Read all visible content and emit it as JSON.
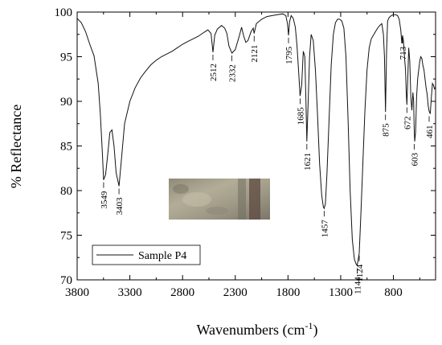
{
  "chart_data": {
    "type": "line",
    "xlabel": "Wavenumbers (cm",
    "xlabel_sup": "-1",
    "xlabel_close": ")",
    "ylabel": "% Reflectance",
    "xlim": [
      3800,
      400
    ],
    "ylim": [
      70,
      100
    ],
    "x_reversed": true,
    "x_ticks": [
      3800,
      3300,
      2800,
      2300,
      1800,
      1300,
      800
    ],
    "y_ticks": [
      70,
      75,
      80,
      85,
      90,
      95,
      100
    ],
    "legend": {
      "label": "Sample P4",
      "placement": "bottom-left"
    },
    "inset_photo": "sample photo",
    "series": [
      {
        "name": "Sample P4",
        "x": [
          3800,
          3760,
          3720,
          3680,
          3640,
          3600,
          3580,
          3560,
          3549,
          3530,
          3510,
          3490,
          3470,
          3450,
          3430,
          3403,
          3380,
          3350,
          3300,
          3250,
          3200,
          3150,
          3100,
          3050,
          3000,
          2950,
          2900,
          2850,
          2800,
          2750,
          2700,
          2650,
          2600,
          2560,
          2530,
          2512,
          2495,
          2470,
          2430,
          2400,
          2380,
          2360,
          2332,
          2300,
          2260,
          2240,
          2220,
          2200,
          2180,
          2150,
          2130,
          2121,
          2100,
          2050,
          2000,
          1950,
          1900,
          1850,
          1820,
          1805,
          1795,
          1785,
          1770,
          1750,
          1730,
          1715,
          1700,
          1685,
          1670,
          1655,
          1640,
          1630,
          1621,
          1610,
          1595,
          1580,
          1560,
          1540,
          1520,
          1500,
          1480,
          1465,
          1457,
          1445,
          1430,
          1410,
          1390,
          1370,
          1350,
          1330,
          1310,
          1290,
          1270,
          1250,
          1230,
          1210,
          1190,
          1170,
          1155,
          1144,
          1135,
          1124,
          1110,
          1090,
          1070,
          1050,
          1030,
          1010,
          990,
          970,
          950,
          930,
          910,
          895,
          885,
          875,
          865,
          855,
          840,
          820,
          800,
          780,
          760,
          745,
          730,
          720,
          713,
          705,
          695,
          685,
          678,
          672,
          665,
          655,
          645,
          635,
          625,
          615,
          608,
          603,
          598,
          590,
          580,
          570,
          560,
          550,
          540,
          530,
          520,
          510,
          500,
          490,
          480,
          470,
          461,
          450,
          440,
          430,
          420,
          410,
          400
        ],
        "y": [
          99.3,
          98.8,
          97.8,
          96.4,
          95.1,
          92.0,
          88.5,
          84.0,
          81.2,
          81.8,
          84.0,
          86.5,
          86.8,
          85.0,
          82.0,
          80.5,
          83.5,
          87.5,
          90.0,
          91.5,
          92.6,
          93.4,
          94.1,
          94.6,
          95.0,
          95.3,
          95.6,
          96.0,
          96.4,
          96.7,
          97.0,
          97.3,
          97.7,
          98.0,
          97.6,
          95.5,
          97.4,
          98.1,
          98.5,
          98.2,
          97.6,
          96.2,
          95.4,
          95.8,
          97.4,
          98.3,
          97.3,
          96.6,
          96.8,
          97.8,
          98.2,
          97.6,
          98.7,
          99.2,
          99.5,
          99.6,
          99.7,
          99.8,
          99.6,
          98.7,
          97.4,
          98.9,
          99.6,
          99.3,
          98.3,
          96.3,
          93.5,
          90.6,
          91.8,
          95.6,
          95.0,
          90.0,
          85.5,
          89.5,
          95.0,
          97.5,
          96.8,
          93.5,
          88.5,
          83.0,
          79.5,
          78.2,
          78.0,
          78.5,
          82.0,
          88.0,
          94.0,
          97.5,
          98.8,
          99.2,
          99.2,
          99.0,
          98.2,
          95.0,
          88.0,
          80.0,
          74.5,
          72.3,
          71.8,
          71.6,
          72.2,
          73.0,
          77.0,
          83.0,
          89.0,
          93.5,
          96.0,
          97.0,
          97.4,
          97.8,
          98.2,
          98.5,
          98.7,
          97.5,
          95.0,
          88.8,
          95.5,
          99.0,
          99.4,
          99.6,
          99.7,
          99.7,
          99.6,
          99.2,
          98.0,
          96.5,
          97.4,
          96.8,
          95.0,
          93.5,
          91.0,
          89.6,
          92.0,
          96.0,
          94.5,
          90.5,
          89.0,
          91.0,
          90.0,
          87.0,
          85.5,
          86.5,
          90.5,
          92.5,
          93.5,
          94.5,
          95.0,
          94.8,
          94.0,
          93.5,
          92.5,
          91.5,
          90.8,
          89.5,
          88.9,
          88.6,
          90.5,
          92.0,
          91.8,
          91.4,
          91.6
        ]
      }
    ],
    "annotations": [
      {
        "label": "3549",
        "x": 3549,
        "y": 81.2
      },
      {
        "label": "3403",
        "x": 3403,
        "y": 80.5
      },
      {
        "label": "2512",
        "x": 2512,
        "y": 95.5
      },
      {
        "label": "2332",
        "x": 2332,
        "y": 95.4
      },
      {
        "label": "2121",
        "x": 2121,
        "y": 97.6
      },
      {
        "label": "1795",
        "x": 1795,
        "y": 97.4
      },
      {
        "label": "1685",
        "x": 1685,
        "y": 90.6
      },
      {
        "label": "1621",
        "x": 1621,
        "y": 85.5
      },
      {
        "label": "1457",
        "x": 1457,
        "y": 78.0
      },
      {
        "label": "1144",
        "x": 1144,
        "y": 71.6
      },
      {
        "label": "1124",
        "x": 1124,
        "y": 73.0
      },
      {
        "label": "875",
        "x": 875,
        "y": 88.8
      },
      {
        "label": "713",
        "x": 713,
        "y": 97.4
      },
      {
        "label": "672",
        "x": 672,
        "y": 89.6
      },
      {
        "label": "603",
        "x": 603,
        "y": 85.5
      },
      {
        "label": "461",
        "x": 461,
        "y": 88.6
      }
    ]
  }
}
